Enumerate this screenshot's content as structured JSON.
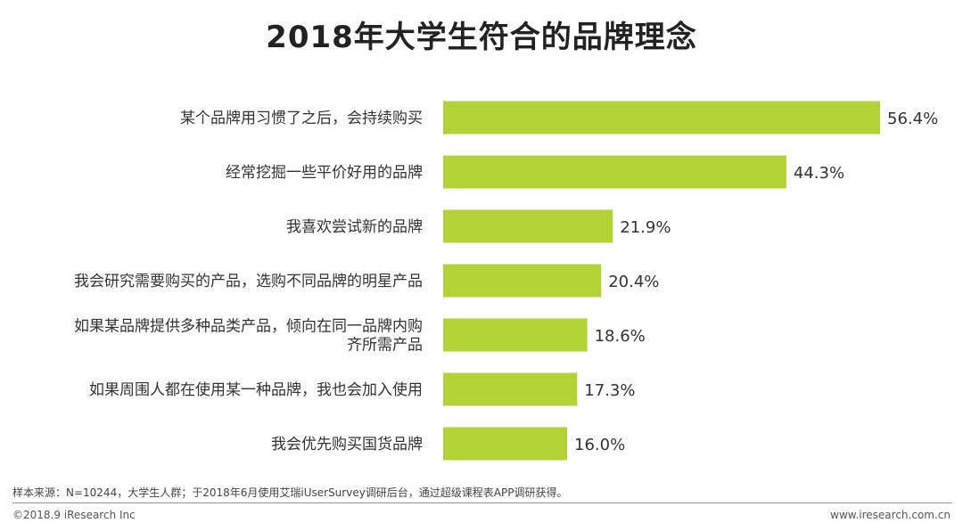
{
  "chart_data": {
    "type": "bar",
    "orientation": "horizontal",
    "title": "2018年大学生符合的品牌理念",
    "categories": [
      [
        "某个品牌用习惯了之后，会持续购买"
      ],
      [
        "经常挖掘一些平价好用的品牌"
      ],
      [
        "我喜欢尝试新的品牌"
      ],
      [
        "我会研究需要购买的产品，选购不同品牌的明星产品"
      ],
      [
        "如果某品牌提供多种品类产品，倾向在同一品牌内购",
        "齐所需产品"
      ],
      [
        "如果周围人都在使用某一种品牌，我也会加入使用"
      ],
      [
        "我会优先购买国货品牌"
      ]
    ],
    "values": [
      56.4,
      44.3,
      21.9,
      20.4,
      18.6,
      17.3,
      16.0
    ],
    "value_labels": [
      "56.4%",
      "44.3%",
      "21.9%",
      "20.4%",
      "18.6%",
      "17.3%",
      "16.0%"
    ],
    "bar_color": "#b2d235",
    "xlim": [
      0,
      56.4
    ],
    "grid": false,
    "legend": "none"
  },
  "footer": {
    "source": "样本来源：N=10244，大学生人群；于2018年6月使用艾瑞iUserSurvey调研后台，通过超级课程表APP调研获得。",
    "copyright": "©2018.9 iResearch Inc",
    "website": "www.iresearch.com.cn"
  }
}
